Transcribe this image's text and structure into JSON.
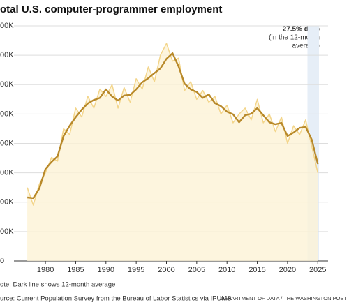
{
  "chart_data": {
    "type": "line",
    "title": "otal U.S. computer-programmer employment",
    "annotation": {
      "title": "27.5% drop",
      "lines": [
        "(in the 12-month",
        "average)"
      ]
    },
    "note": "ote: Dark line shows 12-month average",
    "source": "urce: Current Population Survey from the Bureau of Labor Statistics via IPUMS",
    "credit": "DEPARTMENT OF DATA / THE WASHINGTON POST",
    "x": [
      1977,
      1978,
      1979,
      1980,
      1981,
      1982,
      1983,
      1984,
      1985,
      1986,
      1987,
      1988,
      1989,
      1990,
      1991,
      1992,
      1993,
      1994,
      1995,
      1996,
      1997,
      1998,
      1999,
      2000,
      2001,
      2002,
      2003,
      2004,
      2005,
      2006,
      2007,
      2008,
      2009,
      2010,
      2011,
      2012,
      2013,
      2014,
      2015,
      2016,
      2017,
      2018,
      2019,
      2020,
      2021,
      2022,
      2023,
      2024,
      2025
    ],
    "series": [
      {
        "color": "#f3d58a",
        "values": [
          250000,
          190000,
          262000,
          300000,
          352000,
          340000,
          450000,
          430000,
          520000,
          490000,
          560000,
          520000,
          585000,
          560000,
          600000,
          520000,
          590000,
          540000,
          620000,
          585000,
          660000,
          610000,
          700000,
          740000,
          680000,
          690000,
          580000,
          610000,
          550000,
          580000,
          540000,
          560000,
          500000,
          530000,
          470000,
          500000,
          520000,
          480000,
          550000,
          470000,
          500000,
          440000,
          490000,
          400000,
          460000,
          430000,
          480000,
          390000,
          300000
        ]
      },
      {
        "color": "#b8892a",
        "values": [
          216000,
          214000,
          247000,
          313000,
          337000,
          356000,
          425000,
          460000,
          489000,
          515000,
          536000,
          548000,
          555000,
          584000,
          560000,
          546000,
          563000,
          565000,
          584000,
          608000,
          622000,
          639000,
          655000,
          688000,
          707000,
          662000,
          603000,
          584000,
          575000,
          555000,
          567000,
          537000,
          527000,
          508000,
          499000,
          472000,
          496000,
          501000,
          520000,
          496000,
          472000,
          465000,
          470000,
          425000,
          437000,
          453000,
          456000,
          413000,
          330000
        ]
      }
    ],
    "highlight": [
      2023.3,
      2025.2
    ],
    "xlim": [
      1974.8,
      2026.7
    ],
    "xticks": [
      1980,
      1985,
      1990,
      1995,
      2000,
      2005,
      2010,
      2015,
      2020,
      2025
    ],
    "ylim": [
      0,
      800000
    ],
    "yticks": [
      0,
      {
        "value": 100000,
        "label": "00K"
      },
      {
        "value": 200000,
        "label": "00K"
      },
      {
        "value": 300000,
        "label": "00K"
      },
      {
        "value": 400000,
        "label": "00K"
      },
      {
        "value": 500000,
        "label": "00K"
      },
      {
        "value": 600000,
        "label": "00K"
      },
      {
        "value": 700000,
        "label": "00K"
      },
      {
        "value": 800000,
        "label": "00K"
      }
    ],
    "grid": true
  }
}
